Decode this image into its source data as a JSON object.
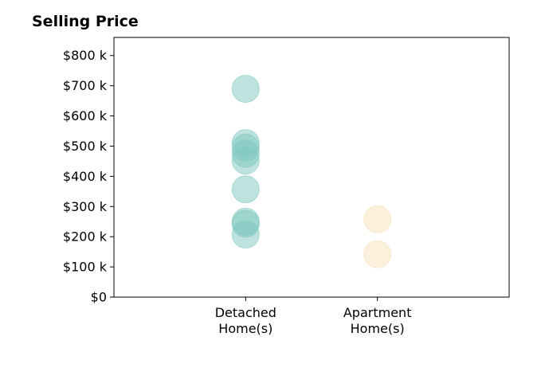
{
  "chart_data": {
    "type": "scatter",
    "title": "Selling Price",
    "xlabel": "",
    "ylabel": "",
    "categories": [
      "Detached\nHome(s)",
      "Apartment\nHome(s)"
    ],
    "xlim": [
      0,
      3
    ],
    "ylim": [
      0,
      860000
    ],
    "yticks": [
      0,
      100000,
      200000,
      300000,
      400000,
      500000,
      600000,
      700000,
      800000
    ],
    "ytick_labels": [
      "$0",
      "$100 k",
      "$200 k",
      "$300 k",
      "$400 k",
      "$500 k",
      "$600 k",
      "$700 k",
      "$800 k"
    ],
    "grid": false,
    "series": [
      {
        "category_index": 0,
        "color": "#7ec8bf",
        "values": [
          690000,
          510000,
          495000,
          475000,
          452000,
          357000,
          250000,
          243000,
          207000
        ]
      },
      {
        "category_index": 1,
        "color": "#f5e2b8",
        "values": [
          258000,
          142000
        ]
      }
    ]
  }
}
